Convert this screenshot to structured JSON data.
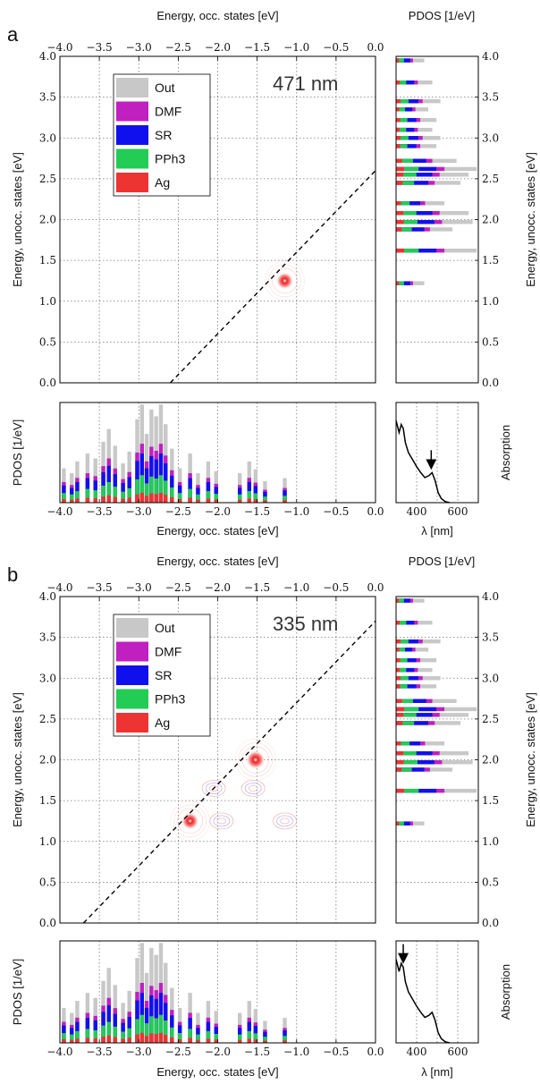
{
  "colors": {
    "Out": "#c8c8c8",
    "DMF": "#c020c0",
    "SR": "#1010ee",
    "PPh3": "#22cc55",
    "Ag": "#ee3333"
  },
  "panels": [
    {
      "letter": "a",
      "wavelength_label": "471 nm",
      "top_xlabel": "Energy, occ. states [eV]",
      "bottom_xlabel": "Energy, occ. states [eV]",
      "main_ylabel": "Energy, unocc. states [eV]",
      "right_ylabel": "Energy, unocc. states [eV]",
      "pdos_label": "PDOS [1/eV]",
      "pdos_top_label": "PDOS [1/eV]",
      "absorption_label": "Absorption",
      "lambda_label": "λ [nm]"
    },
    {
      "letter": "b",
      "wavelength_label": "335 nm",
      "top_xlabel": "Energy, occ. states [eV]",
      "bottom_xlabel": "Energy, occ. states [eV]",
      "main_ylabel": "Energy, unocc. states [eV]",
      "right_ylabel": "Energy, unocc. states [eV]",
      "pdos_label": "PDOS [1/eV]",
      "pdos_top_label": "PDOS [1/eV]",
      "absorption_label": "Absorption",
      "lambda_label": "λ [nm]"
    }
  ],
  "chart_data": [
    {
      "type": "heatmap",
      "panel": "a",
      "x_ticks": [
        "−4.0",
        "−3.5",
        "−3.0",
        "−2.5",
        "−2.0",
        "−1.5",
        "−1.0",
        "−0.5",
        "0.0"
      ],
      "y_ticks": [
        "0.0",
        "0.5",
        "1.0",
        "1.5",
        "2.0",
        "2.5",
        "3.0",
        "3.5",
        "4.0"
      ],
      "xlim": [
        -4.0,
        0.0
      ],
      "ylim": [
        0.0,
        4.0
      ],
      "grid": true,
      "legend_entries": [
        "Out",
        "DMF",
        "SR",
        "PPh3",
        "Ag"
      ],
      "legend_position": "top-left",
      "annotation": "471 nm",
      "diagonal_line": {
        "x": [
          -2.6,
          0.0
        ],
        "y": [
          0.0,
          2.6
        ]
      },
      "hotspots": [
        {
          "x": -1.15,
          "y": 1.25,
          "strength": 1.0
        }
      ]
    },
    {
      "type": "area",
      "panel": "a-pdos-occupied",
      "series": [
        "Out",
        "DMF",
        "SR",
        "PPh3",
        "Ag"
      ],
      "xlim": [
        -4.0,
        0.0
      ],
      "grid": true,
      "peaks": [
        {
          "x": -3.95,
          "h": 0.35
        },
        {
          "x": -3.85,
          "h": 0.3
        },
        {
          "x": -3.78,
          "h": 0.42
        },
        {
          "x": -3.65,
          "h": 0.5
        },
        {
          "x": -3.55,
          "h": 0.45
        },
        {
          "x": -3.45,
          "h": 0.62
        },
        {
          "x": -3.38,
          "h": 0.75
        },
        {
          "x": -3.3,
          "h": 0.58
        },
        {
          "x": -3.2,
          "h": 0.4
        },
        {
          "x": -3.12,
          "h": 0.52
        },
        {
          "x": -3.02,
          "h": 0.85
        },
        {
          "x": -2.96,
          "h": 1.0
        },
        {
          "x": -2.9,
          "h": 0.7
        },
        {
          "x": -2.84,
          "h": 0.95
        },
        {
          "x": -2.78,
          "h": 0.88
        },
        {
          "x": -2.72,
          "h": 1.0
        },
        {
          "x": -2.66,
          "h": 0.8
        },
        {
          "x": -2.58,
          "h": 0.55
        },
        {
          "x": -2.48,
          "h": 0.35
        },
        {
          "x": -2.35,
          "h": 0.5
        },
        {
          "x": -2.25,
          "h": 0.3
        },
        {
          "x": -2.12,
          "h": 0.42
        },
        {
          "x": -2.02,
          "h": 0.32
        },
        {
          "x": -1.72,
          "h": 0.3
        },
        {
          "x": -1.6,
          "h": 0.42
        },
        {
          "x": -1.52,
          "h": 0.34
        },
        {
          "x": -1.4,
          "h": 0.22
        },
        {
          "x": -1.15,
          "h": 0.25
        }
      ]
    },
    {
      "type": "area",
      "panel": "a-pdos-unoccupied",
      "series": [
        "Out",
        "DMF",
        "SR",
        "PPh3",
        "Ag"
      ],
      "ylim": [
        0.0,
        4.0
      ],
      "grid": true,
      "peaks": [
        {
          "y": 1.22,
          "h": 0.35
        },
        {
          "y": 1.62,
          "h": 1.0
        },
        {
          "y": 1.88,
          "h": 0.7
        },
        {
          "y": 1.97,
          "h": 0.95
        },
        {
          "y": 2.08,
          "h": 0.9
        },
        {
          "y": 2.2,
          "h": 0.6
        },
        {
          "y": 2.45,
          "h": 0.8
        },
        {
          "y": 2.55,
          "h": 0.9
        },
        {
          "y": 2.62,
          "h": 1.0
        },
        {
          "y": 2.72,
          "h": 0.75
        },
        {
          "y": 2.9,
          "h": 0.5
        },
        {
          "y": 3.0,
          "h": 0.55
        },
        {
          "y": 3.1,
          "h": 0.45
        },
        {
          "y": 3.22,
          "h": 0.5
        },
        {
          "y": 3.35,
          "h": 0.4
        },
        {
          "y": 3.45,
          "h": 0.55
        },
        {
          "y": 3.68,
          "h": 0.45
        },
        {
          "y": 3.95,
          "h": 0.35
        }
      ]
    },
    {
      "type": "line",
      "panel": "a-absorption",
      "x_ticks": [
        "400",
        "600"
      ],
      "xlim": [
        300,
        700
      ],
      "grid": true,
      "arrow_at": 471,
      "x": [
        300,
        315,
        325,
        335,
        345,
        360,
        380,
        400,
        420,
        440,
        460,
        475,
        490,
        505,
        520,
        540,
        560
      ],
      "y": [
        0.82,
        0.7,
        0.78,
        0.74,
        0.6,
        0.5,
        0.43,
        0.36,
        0.3,
        0.25,
        0.27,
        0.3,
        0.22,
        0.1,
        0.04,
        0.01,
        0.0
      ]
    },
    {
      "type": "heatmap",
      "panel": "b",
      "x_ticks": [
        "−4.0",
        "−3.5",
        "−3.0",
        "−2.5",
        "−2.0",
        "−1.5",
        "−1.0",
        "−0.5",
        "0.0"
      ],
      "y_ticks": [
        "0.0",
        "0.5",
        "1.0",
        "1.5",
        "2.0",
        "2.5",
        "3.0",
        "3.5",
        "4.0"
      ],
      "xlim": [
        -4.0,
        0.0
      ],
      "ylim": [
        0.0,
        4.0
      ],
      "grid": true,
      "legend_entries": [
        "Out",
        "DMF",
        "SR",
        "PPh3",
        "Ag"
      ],
      "legend_position": "top-left",
      "annotation": "335 nm",
      "diagonal_line": {
        "x": [
          -3.7,
          0.0
        ],
        "y": [
          0.0,
          3.7
        ]
      },
      "hotspots": [
        {
          "x": -2.35,
          "y": 1.25,
          "strength": 1.0
        },
        {
          "x": -1.52,
          "y": 2.0,
          "strength": 0.85
        },
        {
          "x": -2.05,
          "y": 1.65,
          "strength": 0.45
        },
        {
          "x": -1.55,
          "y": 1.65,
          "strength": 0.3
        },
        {
          "x": -1.15,
          "y": 1.25,
          "strength": 0.3
        },
        {
          "x": -1.95,
          "y": 1.25,
          "strength": 0.25
        }
      ]
    },
    {
      "type": "area",
      "panel": "b-pdos-occupied",
      "series": [
        "Out",
        "DMF",
        "SR",
        "PPh3",
        "Ag"
      ],
      "xlim": [
        -4.0,
        0.0
      ],
      "grid": true,
      "peaks": [
        {
          "x": -3.95,
          "h": 0.35
        },
        {
          "x": -3.85,
          "h": 0.3
        },
        {
          "x": -3.78,
          "h": 0.42
        },
        {
          "x": -3.65,
          "h": 0.5
        },
        {
          "x": -3.55,
          "h": 0.45
        },
        {
          "x": -3.45,
          "h": 0.62
        },
        {
          "x": -3.38,
          "h": 0.75
        },
        {
          "x": -3.3,
          "h": 0.58
        },
        {
          "x": -3.2,
          "h": 0.4
        },
        {
          "x": -3.12,
          "h": 0.52
        },
        {
          "x": -3.02,
          "h": 0.85
        },
        {
          "x": -2.96,
          "h": 1.0
        },
        {
          "x": -2.9,
          "h": 0.7
        },
        {
          "x": -2.84,
          "h": 0.95
        },
        {
          "x": -2.78,
          "h": 0.88
        },
        {
          "x": -2.72,
          "h": 1.0
        },
        {
          "x": -2.66,
          "h": 0.8
        },
        {
          "x": -2.58,
          "h": 0.55
        },
        {
          "x": -2.48,
          "h": 0.35
        },
        {
          "x": -2.35,
          "h": 0.5
        },
        {
          "x": -2.25,
          "h": 0.3
        },
        {
          "x": -2.12,
          "h": 0.42
        },
        {
          "x": -2.02,
          "h": 0.32
        },
        {
          "x": -1.72,
          "h": 0.3
        },
        {
          "x": -1.6,
          "h": 0.42
        },
        {
          "x": -1.52,
          "h": 0.34
        },
        {
          "x": -1.4,
          "h": 0.22
        },
        {
          "x": -1.15,
          "h": 0.25
        }
      ]
    },
    {
      "type": "area",
      "panel": "b-pdos-unoccupied",
      "series": [
        "Out",
        "DMF",
        "SR",
        "PPh3",
        "Ag"
      ],
      "ylim": [
        0.0,
        4.0
      ],
      "grid": true,
      "peaks": [
        {
          "y": 1.22,
          "h": 0.35
        },
        {
          "y": 1.62,
          "h": 1.0
        },
        {
          "y": 1.88,
          "h": 0.7
        },
        {
          "y": 1.97,
          "h": 0.95
        },
        {
          "y": 2.08,
          "h": 0.9
        },
        {
          "y": 2.2,
          "h": 0.6
        },
        {
          "y": 2.45,
          "h": 0.8
        },
        {
          "y": 2.55,
          "h": 0.9
        },
        {
          "y": 2.62,
          "h": 1.0
        },
        {
          "y": 2.72,
          "h": 0.75
        },
        {
          "y": 2.9,
          "h": 0.5
        },
        {
          "y": 3.0,
          "h": 0.55
        },
        {
          "y": 3.1,
          "h": 0.45
        },
        {
          "y": 3.22,
          "h": 0.5
        },
        {
          "y": 3.35,
          "h": 0.4
        },
        {
          "y": 3.45,
          "h": 0.55
        },
        {
          "y": 3.68,
          "h": 0.45
        },
        {
          "y": 3.95,
          "h": 0.35
        }
      ]
    },
    {
      "type": "line",
      "panel": "b-absorption",
      "x_ticks": [
        "400",
        "600"
      ],
      "xlim": [
        300,
        700
      ],
      "grid": true,
      "arrow_at": 335,
      "x": [
        300,
        315,
        325,
        335,
        345,
        360,
        380,
        400,
        420,
        440,
        460,
        475,
        490,
        505,
        520,
        540,
        560
      ],
      "y": [
        0.82,
        0.7,
        0.78,
        0.74,
        0.6,
        0.5,
        0.43,
        0.36,
        0.3,
        0.25,
        0.27,
        0.3,
        0.22,
        0.1,
        0.04,
        0.01,
        0.0
      ]
    }
  ]
}
